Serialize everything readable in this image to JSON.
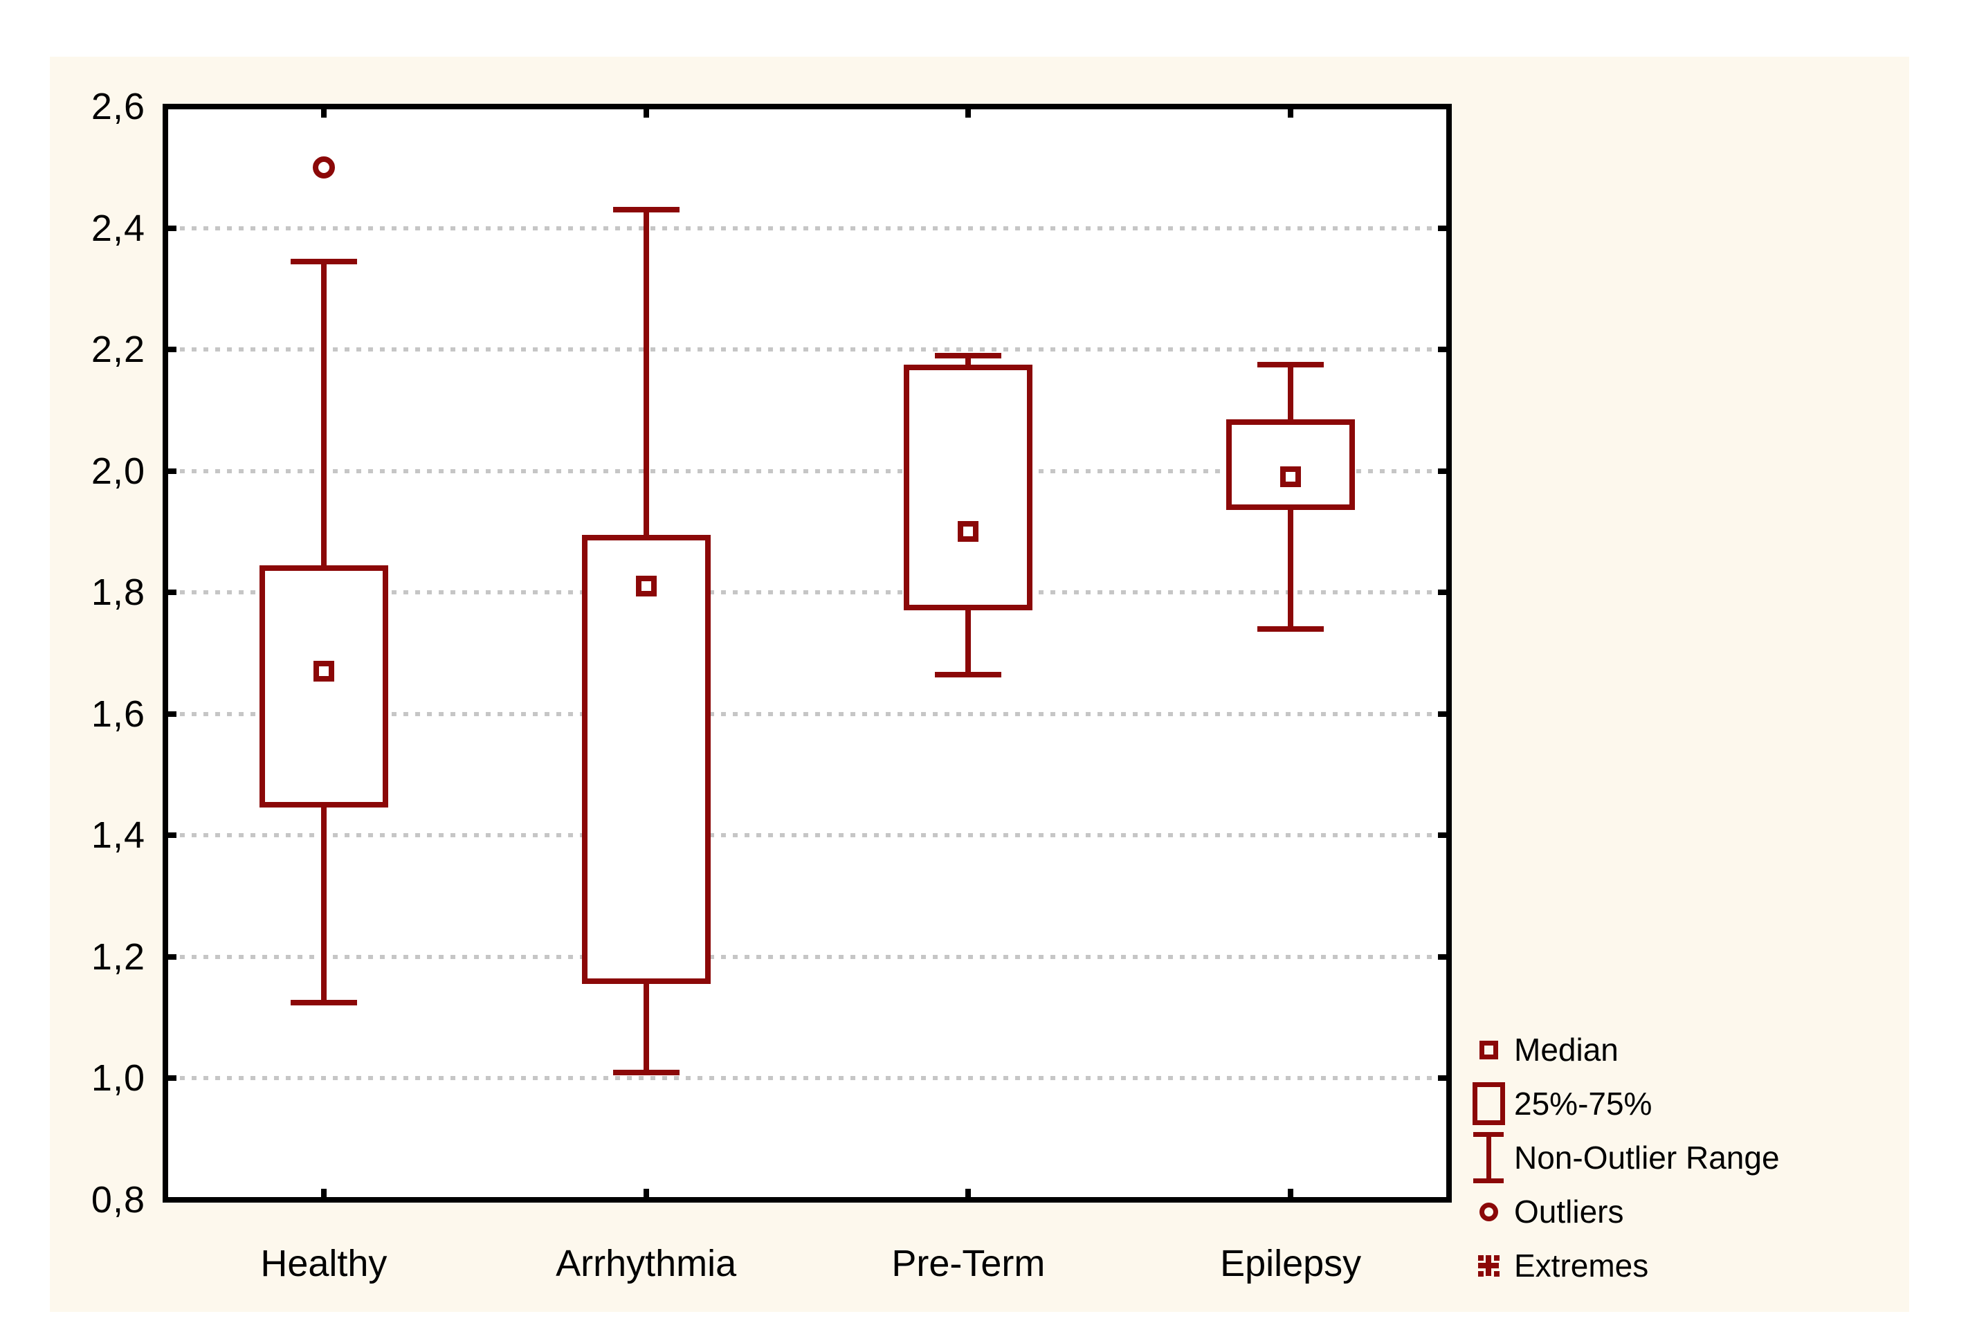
{
  "chart_data": {
    "type": "boxplot",
    "title": "",
    "categories": [
      "Healthy",
      "Arrhythmia",
      "Pre-Term",
      "Epilepsy"
    ],
    "series": [
      {
        "name": "Healthy",
        "median": 1.67,
        "q1": 1.45,
        "q3": 1.84,
        "whisker_low": 1.125,
        "whisker_high": 2.345,
        "outliers": [
          2.5
        ],
        "extremes": []
      },
      {
        "name": "Arrhythmia",
        "median": 1.81,
        "q1": 1.16,
        "q3": 1.89,
        "whisker_low": 1.01,
        "whisker_high": 2.43,
        "outliers": [],
        "extremes": []
      },
      {
        "name": "Pre-Term",
        "median": 1.9,
        "q1": 1.775,
        "q3": 2.17,
        "whisker_low": 1.665,
        "whisker_high": 2.19,
        "outliers": [],
        "extremes": []
      },
      {
        "name": "Epilepsy",
        "median": 1.99,
        "q1": 1.94,
        "q3": 2.08,
        "whisker_low": 1.74,
        "whisker_high": 2.175,
        "outliers": [],
        "extremes": []
      }
    ],
    "y_axis": {
      "min": 0.8,
      "max": 2.6,
      "tick_step": 0.2,
      "tick_labels": [
        "0,8",
        "1,0",
        "1,2",
        "1,4",
        "1,6",
        "1,8",
        "2,0",
        "2,2",
        "2,4",
        "2,6"
      ],
      "decimal_separator": ","
    },
    "x_axis": {
      "label": ""
    },
    "grid": {
      "horizontal": "dotted",
      "vertical": "none"
    },
    "legend": {
      "position": "bottom-right",
      "items": [
        {
          "marker": "median-square",
          "label": "Median"
        },
        {
          "marker": "box",
          "label": "25%-75%"
        },
        {
          "marker": "whisker",
          "label": "Non-Outlier Range"
        },
        {
          "marker": "circle",
          "label": "Outliers"
        },
        {
          "marker": "asterisk",
          "label": "Extremes"
        }
      ]
    }
  },
  "colors": {
    "box": "#8b0808",
    "grid": "#c6c6c6",
    "axis": "#000000",
    "panel_bg": "#fdf8ed",
    "plot_bg": "#ffffff",
    "page_bg": "#ffffff",
    "text": "#000000"
  }
}
